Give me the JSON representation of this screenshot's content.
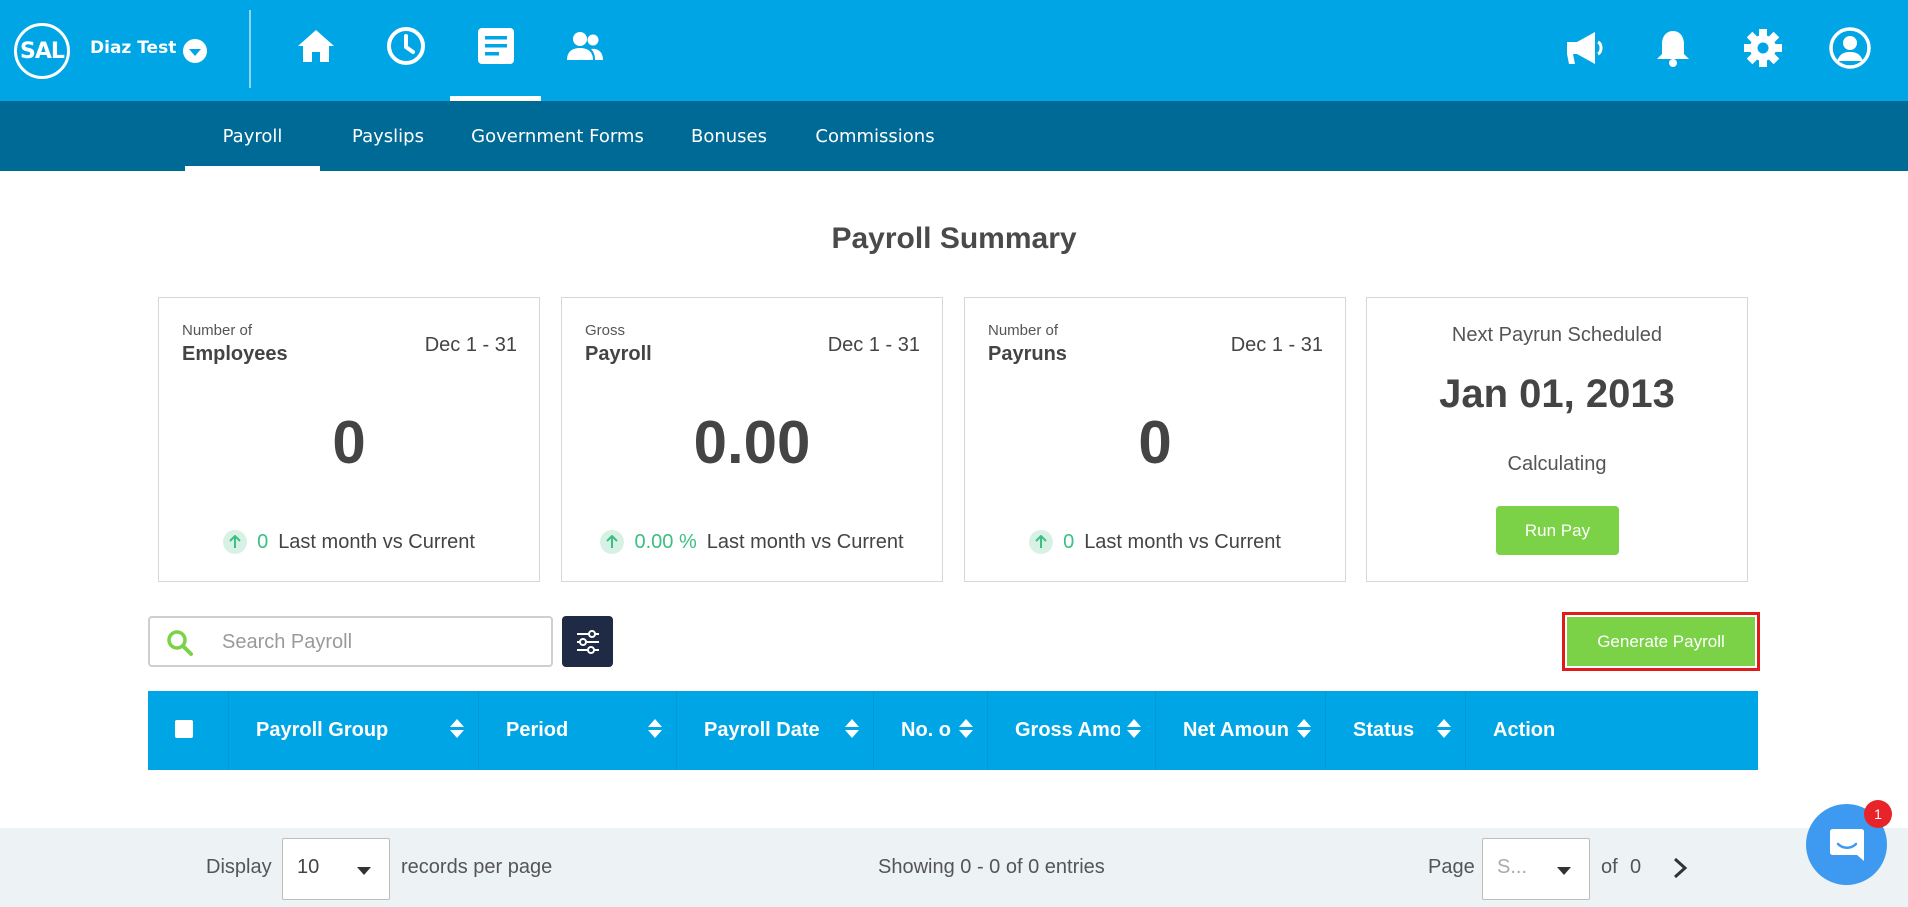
{
  "header": {
    "logo_text": "SAL",
    "company_name": "Diaz Test",
    "nav_icons": [
      "home-icon",
      "clock-icon",
      "document-icon",
      "people-icon"
    ],
    "right_icons": [
      "megaphone-icon",
      "bell-icon",
      "gear-icon",
      "user-icon"
    ]
  },
  "subnav": {
    "tabs": [
      "Payroll",
      "Payslips",
      "Government Forms",
      "Bonuses",
      "Commissions"
    ],
    "active": "Payroll"
  },
  "summary": {
    "title": "Payroll Summary",
    "cards": [
      {
        "small": "Number of",
        "bold": "Employees",
        "range": "Dec 1 - 31",
        "value": "0",
        "trend_value": "0",
        "trend_label": "Last month vs Current"
      },
      {
        "small": "Gross",
        "bold": "Payroll",
        "range": "Dec 1 - 31",
        "value": "0.00",
        "trend_value": "0.00 %",
        "trend_label": "Last month vs Current"
      },
      {
        "small": "Number of",
        "bold": "Payruns",
        "range": "Dec 1 - 31",
        "value": "0",
        "trend_value": "0",
        "trend_label": "Last month vs Current"
      }
    ],
    "next_payrun": {
      "title": "Next Payrun Scheduled",
      "date": "Jan 01, 2013",
      "status": "Calculating",
      "button": "Run Pay"
    }
  },
  "toolbar": {
    "search_placeholder": "Search Payroll",
    "generate_label": "Generate Payroll"
  },
  "table": {
    "columns": [
      "Payroll Group",
      "Period",
      "Payroll Date",
      "No. o",
      "Gross Amou",
      "Net Amoun",
      "Status",
      "Action"
    ]
  },
  "footer": {
    "display_label": "Display",
    "per_page_value": "10",
    "per_page_suffix": "records per page",
    "showing": "Showing 0 - 0 of 0 entries",
    "page_label": "Page",
    "page_value": "S...",
    "of_label": "of",
    "total_pages": "0"
  },
  "chat": {
    "badge": "1"
  },
  "colors": {
    "primary": "#00a5e5",
    "subnav": "#006a96",
    "green": "#7bd247",
    "highlight": "#e01b1b",
    "dark": "#1f2a44"
  }
}
